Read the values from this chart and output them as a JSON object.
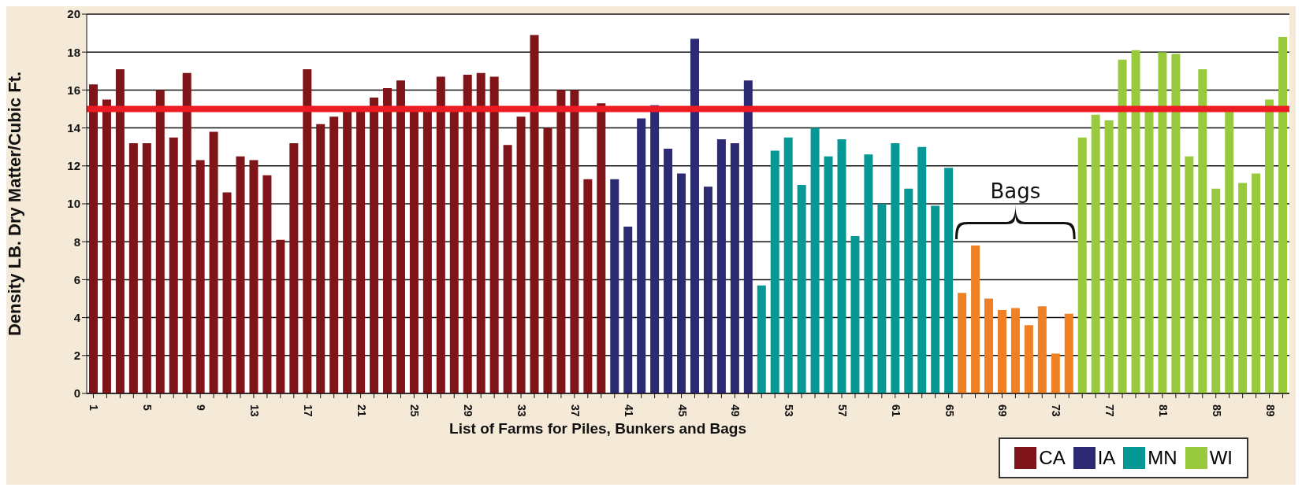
{
  "chart_data": {
    "type": "bar",
    "xlabel": "List of Farms for Piles, Bunkers and Bags",
    "ylabel": "Density LB. Dry Matter/Cubic Ft.",
    "categories": [
      "1",
      null,
      null,
      null,
      "5",
      null,
      null,
      null,
      "9",
      null,
      null,
      null,
      "13",
      null,
      null,
      null,
      "17",
      null,
      null,
      null,
      "21",
      null,
      null,
      null,
      "25",
      null,
      null,
      null,
      "29",
      null,
      null,
      null,
      "33",
      null,
      null,
      null,
      "37",
      null,
      null,
      null,
      "41",
      null,
      null,
      null,
      "45",
      null,
      null,
      null,
      "49",
      null,
      null,
      null,
      "53",
      null,
      null,
      null,
      "57",
      null,
      null,
      null,
      "61",
      null,
      null,
      null,
      "65",
      null,
      null,
      null,
      "69",
      null,
      null,
      null,
      "73",
      null,
      null,
      null,
      "77",
      null,
      null,
      null,
      "81",
      null,
      null,
      null,
      "85",
      null,
      null,
      null,
      "89",
      null
    ],
    "series": [
      {
        "name": "CA",
        "color": "#7f1518",
        "values": [
          16.3,
          15.5,
          17.1,
          13.2,
          13.2,
          16.0,
          13.5,
          16.9,
          12.3,
          13.8,
          10.6,
          12.5,
          12.3,
          11.5,
          8.1,
          13.2,
          17.1,
          14.2,
          14.6,
          14.9,
          15.0,
          15.6,
          16.1,
          16.5,
          14.9,
          15.0,
          16.7,
          14.9,
          16.8,
          16.9,
          16.7,
          13.1,
          14.6,
          18.9,
          14.0,
          16.0,
          16.0,
          11.3,
          15.3,
          null,
          null,
          null,
          null,
          null,
          null,
          null,
          null,
          null,
          null,
          null,
          null,
          null,
          null,
          null,
          null,
          null,
          null,
          null,
          null,
          null,
          null,
          null,
          null,
          null,
          null,
          null,
          null,
          null,
          null,
          null,
          null,
          null,
          null,
          null,
          null,
          null,
          null,
          null,
          null,
          null,
          null,
          null,
          null,
          null,
          null,
          null,
          null,
          null,
          null,
          null
        ]
      },
      {
        "name": "IA",
        "color": "#2b2a72",
        "values": [
          null,
          null,
          null,
          null,
          null,
          null,
          null,
          null,
          null,
          null,
          null,
          null,
          null,
          null,
          null,
          null,
          null,
          null,
          null,
          null,
          null,
          null,
          null,
          null,
          null,
          null,
          null,
          null,
          null,
          null,
          null,
          null,
          null,
          null,
          null,
          null,
          null,
          null,
          null,
          11.3,
          8.8,
          14.5,
          15.2,
          12.9,
          11.6,
          18.7,
          10.9,
          13.4,
          13.2,
          16.5,
          null,
          null,
          null,
          null,
          null,
          null,
          null,
          null,
          null,
          null,
          null,
          null,
          null,
          null,
          null,
          null,
          null,
          null,
          null,
          null,
          null,
          null,
          null,
          null,
          null,
          null,
          null,
          null,
          null,
          null,
          null,
          null,
          null,
          null,
          null,
          null,
          null,
          null,
          null,
          null
        ]
      },
      {
        "name": "MN",
        "color": "#079895",
        "values": [
          null,
          null,
          null,
          null,
          null,
          null,
          null,
          null,
          null,
          null,
          null,
          null,
          null,
          null,
          null,
          null,
          null,
          null,
          null,
          null,
          null,
          null,
          null,
          null,
          null,
          null,
          null,
          null,
          null,
          null,
          null,
          null,
          null,
          null,
          null,
          null,
          null,
          null,
          null,
          null,
          null,
          null,
          null,
          null,
          null,
          null,
          null,
          null,
          null,
          null,
          5.7,
          12.8,
          13.5,
          11.0,
          14.0,
          12.5,
          13.4,
          8.3,
          12.6,
          10.0,
          13.2,
          10.8,
          13.0,
          9.9,
          11.9,
          null,
          null,
          null,
          null,
          null,
          null,
          null,
          null,
          null,
          null,
          null,
          null,
          null,
          null,
          null,
          null,
          null,
          null,
          null,
          null,
          null,
          null,
          null,
          null,
          null
        ]
      },
      {
        "color": "#f08024",
        "values": [
          null,
          null,
          null,
          null,
          null,
          null,
          null,
          null,
          null,
          null,
          null,
          null,
          null,
          null,
          null,
          null,
          null,
          null,
          null,
          null,
          null,
          null,
          null,
          null,
          null,
          null,
          null,
          null,
          null,
          null,
          null,
          null,
          null,
          null,
          null,
          null,
          null,
          null,
          null,
          null,
          null,
          null,
          null,
          null,
          null,
          null,
          null,
          null,
          null,
          null,
          null,
          null,
          null,
          null,
          null,
          null,
          null,
          null,
          null,
          null,
          null,
          null,
          null,
          null,
          null,
          5.3,
          7.8,
          5.0,
          4.4,
          4.5,
          3.6,
          4.6,
          2.1,
          4.2,
          null,
          null,
          null,
          null,
          null,
          null,
          null,
          null,
          null,
          null,
          null,
          null,
          null,
          null,
          null,
          null
        ]
      },
      {
        "name": "WI",
        "color": "#99c93c",
        "values": [
          null,
          null,
          null,
          null,
          null,
          null,
          null,
          null,
          null,
          null,
          null,
          null,
          null,
          null,
          null,
          null,
          null,
          null,
          null,
          null,
          null,
          null,
          null,
          null,
          null,
          null,
          null,
          null,
          null,
          null,
          null,
          null,
          null,
          null,
          null,
          null,
          null,
          null,
          null,
          null,
          null,
          null,
          null,
          null,
          null,
          null,
          null,
          null,
          null,
          null,
          null,
          null,
          null,
          null,
          null,
          null,
          null,
          null,
          null,
          null,
          null,
          null,
          null,
          null,
          null,
          null,
          null,
          null,
          null,
          null,
          null,
          null,
          null,
          null,
          13.5,
          14.7,
          14.4,
          17.6,
          18.1,
          14.9,
          18.0,
          17.9,
          12.5,
          17.1,
          10.8,
          14.9,
          11.1,
          11.6,
          15.5,
          18.8
        ]
      }
    ],
    "stacked": true,
    "ylim": [
      0,
      20
    ],
    "yticks": [
      0,
      2,
      4,
      6,
      8,
      10,
      12,
      14,
      16,
      18,
      20
    ],
    "grid": "y",
    "legend": "bottom right",
    "ref_lines": [
      {
        "axis": "y",
        "value": 15,
        "color": "#ed1c24"
      }
    ],
    "annotations": [
      "Bags"
    ]
  }
}
